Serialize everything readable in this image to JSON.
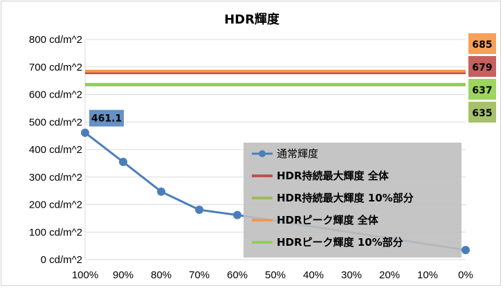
{
  "chart_data": {
    "type": "line",
    "title": "HDR輝度",
    "categories": [
      "100%",
      "90%",
      "80%",
      "70%",
      "60%",
      "50%",
      "40%",
      "30%",
      "20%",
      "10%",
      "0%"
    ],
    "y_ticks": [
      "0 cd/m^2",
      "100 cd/m^2",
      "200 cd/m^2",
      "300 cd/m^2",
      "400 cd/m^2",
      "500 cd/m^2",
      "600 cd/m^2",
      "700 cd/m^2",
      "800 cd/m^2"
    ],
    "ylim": [
      0,
      800
    ],
    "grid": true,
    "legend_position": "bottom-right",
    "series": [
      {
        "name": "通常輝度",
        "color": "#4a7ebb",
        "style": "line-markers",
        "bold": false,
        "values": [
          461.1,
          355,
          247,
          181,
          162,
          null,
          null,
          null,
          null,
          null,
          35
        ],
        "first_label": "461.1"
      },
      {
        "name": "HDR持続最大輝度 全体",
        "color": "#c0504d",
        "style": "flat",
        "bold": true,
        "value": 679,
        "label": "679"
      },
      {
        "name": "HDR持続最大輝度 10%部分",
        "color": "#9bbb59",
        "style": "flat",
        "bold": true,
        "value": 635,
        "label": "635"
      },
      {
        "name": "HDRピーク輝度 全体",
        "color": "#f79646",
        "style": "flat",
        "bold": true,
        "value": 685,
        "label": "685"
      },
      {
        "name": "HDRピーク輝度 10%部分",
        "color": "#92d050",
        "style": "flat",
        "bold": true,
        "value": 637,
        "label": "637"
      }
    ]
  }
}
